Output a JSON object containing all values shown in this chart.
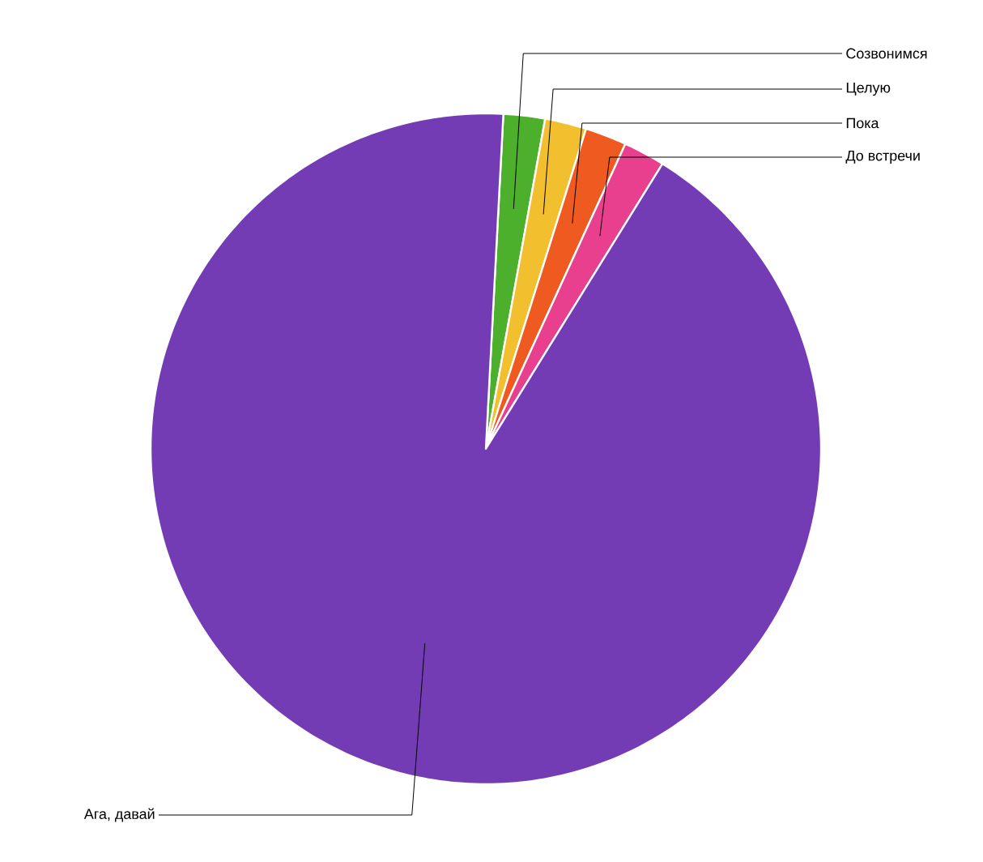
{
  "chart_data": {
    "type": "pie",
    "categories": [
      "Созвонимся",
      "Целую",
      "Пока",
      "До встречи",
      "Ага, давай"
    ],
    "values": [
      2,
      2,
      2,
      2,
      92
    ],
    "colors": [
      "#4cb02c",
      "#f2c02e",
      "#ee5a1f",
      "#e8408f",
      "#733cb5"
    ]
  }
}
